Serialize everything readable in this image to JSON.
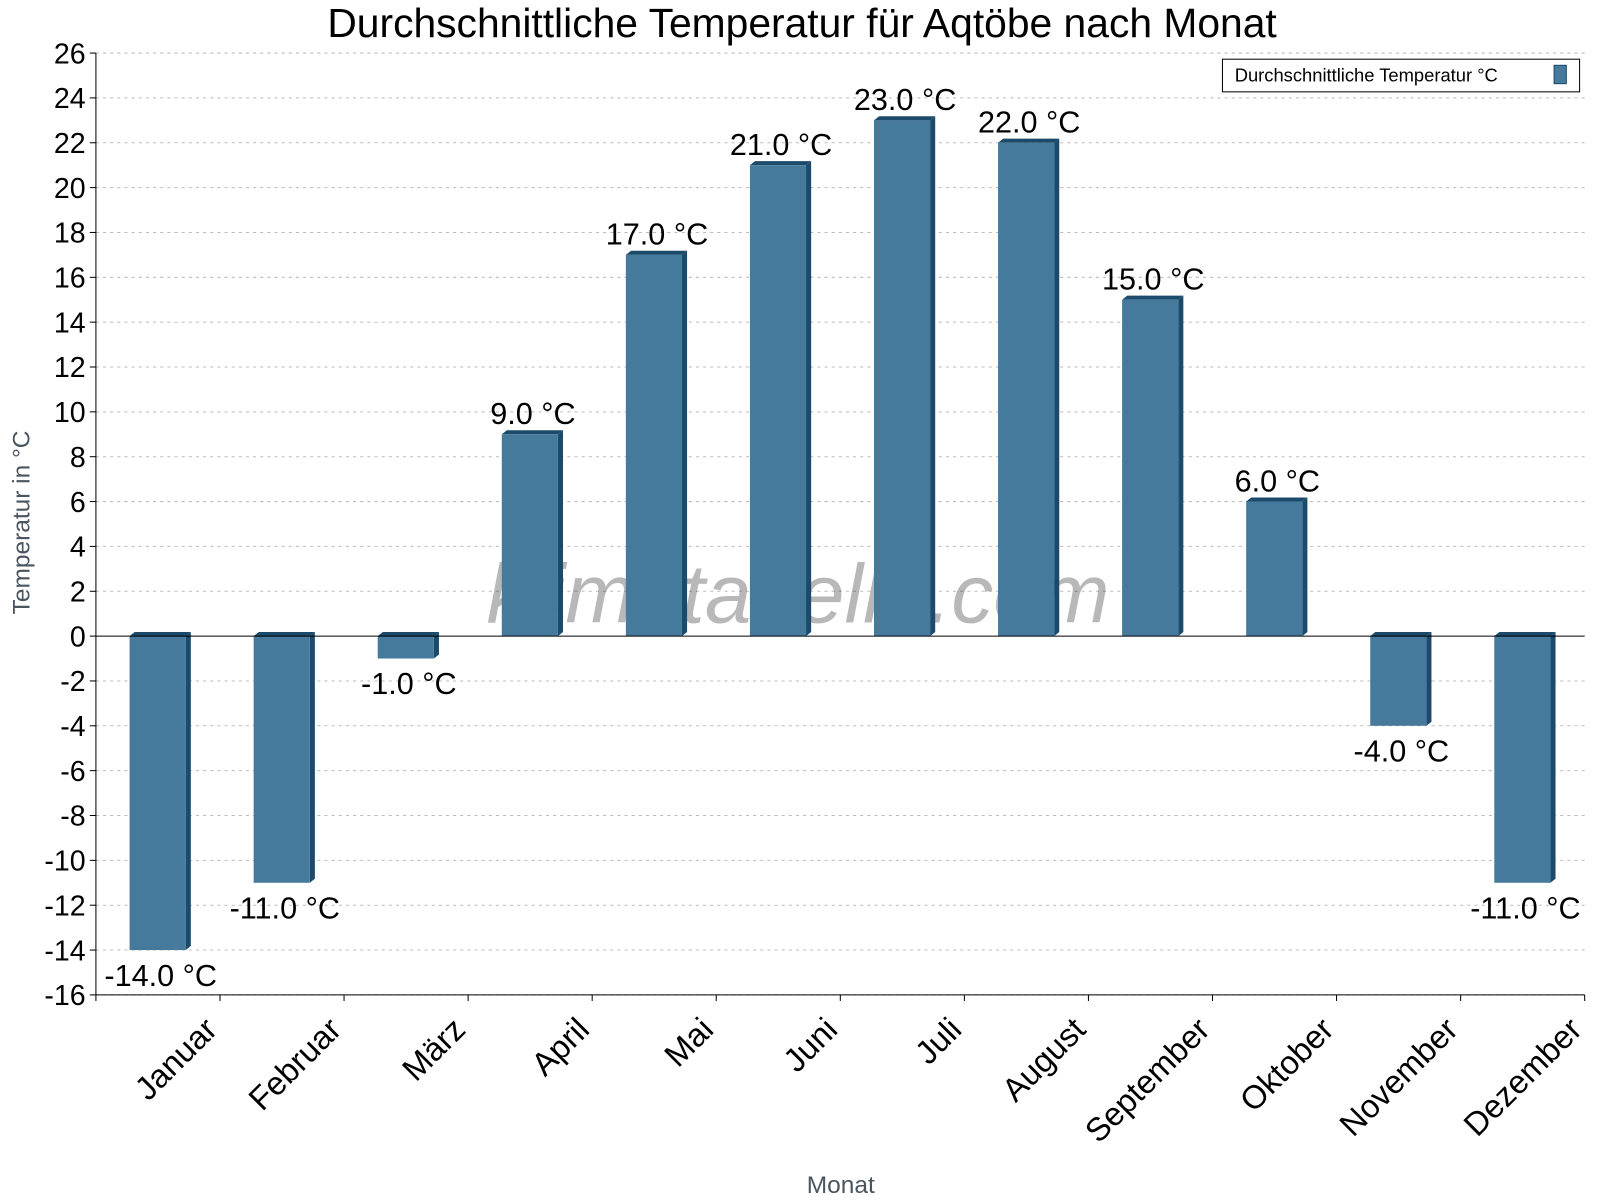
{
  "chart_data": {
    "type": "bar",
    "title": "Durchschnittliche Temperatur für Aqtöbe nach Monat",
    "xlabel": "Monat",
    "ylabel": "Temperatur in °C",
    "categories": [
      "Januar",
      "Februar",
      "März",
      "April",
      "Mai",
      "Juni",
      "Juli",
      "August",
      "September",
      "Oktober",
      "November",
      "Dezember"
    ],
    "series": [
      {
        "name": "Durchschnittliche Temperatur °C",
        "values": [
          -14,
          -11,
          -1,
          9,
          17,
          21,
          23,
          22,
          15,
          6,
          -4,
          -11
        ]
      }
    ],
    "data_labels": [
      "-14.0 °C",
      "-11.0 °C",
      "-1.0 °C",
      "9.0 °C",
      "17.0 °C",
      "21.0 °C",
      "23.0 °C",
      "22.0 °C",
      "15.0 °C",
      "6.0 °C",
      "-4.0 °C",
      "-11.0 °C"
    ],
    "ylim": [
      -16,
      26
    ],
    "yticks": [
      -16,
      -14,
      -12,
      -10,
      -8,
      -6,
      -4,
      -2,
      0,
      2,
      4,
      6,
      8,
      10,
      12,
      14,
      16,
      18,
      20,
      22,
      24,
      26
    ],
    "grid": true,
    "legend_position": "top-right",
    "colors": {
      "bar": "#457a9c",
      "bar_shade": "#1b4a6b"
    },
    "watermark": "klimatabelle.com"
  }
}
